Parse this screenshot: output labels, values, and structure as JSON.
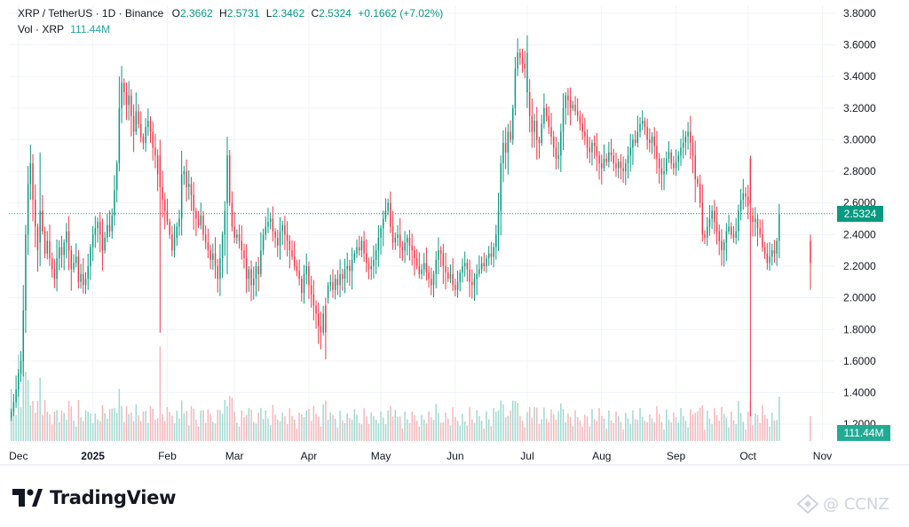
{
  "header": {
    "symbol": "XRP / TetherUS · 1D · Binance",
    "open_label": "O",
    "open": "2.3662",
    "high_label": "H",
    "high": "2.5731",
    "low_label": "L",
    "low": "2.3462",
    "close_label": "C",
    "close": "2.5324",
    "change": "+0.1662 (+7.02%)",
    "vol_label": "Vol · XRP",
    "vol_value": "111.44M"
  },
  "price_tag": "2.5324",
  "volume_tag": "111.44M",
  "brand": {
    "name": "TradingView"
  },
  "watermark": {
    "text": "@ CCNZ"
  },
  "colors": {
    "up": "#089981",
    "down": "#f23645",
    "up_vol": "#9fd9cf",
    "down_vol": "#f7b5ba",
    "grid": "#f0f3fa",
    "axis_text": "#131722"
  },
  "chart_data": {
    "type": "candlestick",
    "title": "XRP / TetherUS · 1D · Binance",
    "ylim": [
      1.1,
      3.85
    ],
    "y_ticks": [
      "3.8000",
      "3.6000",
      "3.4000",
      "3.2000",
      "3.0000",
      "2.8000",
      "2.6000",
      "2.4000",
      "2.2000",
      "2.0000",
      "1.8000",
      "1.6000",
      "1.4000",
      "1.2000"
    ],
    "x_ticks": [
      {
        "label": "Dec",
        "day": 0
      },
      {
        "label": "2025",
        "day": 31
      },
      {
        "label": "Feb",
        "day": 62
      },
      {
        "label": "Mar",
        "day": 90
      },
      {
        "label": "Apr",
        "day": 121
      },
      {
        "label": "May",
        "day": 151
      },
      {
        "label": "Jun",
        "day": 182
      },
      {
        "label": "Jul",
        "day": 212
      },
      {
        "label": "Aug",
        "day": 243
      },
      {
        "label": "Sep",
        "day": 274
      },
      {
        "label": "Oct",
        "day": 304
      },
      {
        "label": "Nov",
        "day": 335
      }
    ],
    "last_price": 2.5324,
    "day_start": -4,
    "day_end": 340,
    "first_day": -3,
    "closes": [
      1.28,
      1.34,
      1.42,
      1.52,
      1.6,
      1.92,
      2.4,
      2.72,
      2.85,
      2.62,
      2.45,
      2.3,
      2.55,
      2.42,
      2.28,
      2.36,
      2.25,
      2.18,
      2.12,
      2.25,
      2.32,
      2.27,
      2.35,
      2.42,
      2.3,
      2.18,
      2.22,
      2.26,
      2.1,
      2.15,
      2.08,
      2.12,
      2.2,
      2.32,
      2.4,
      2.44,
      2.48,
      2.4,
      2.3,
      2.38,
      2.46,
      2.42,
      2.52,
      2.68,
      2.85,
      3.2,
      3.36,
      3.3,
      3.22,
      3.28,
      3.15,
      3.05,
      3.18,
      3.1,
      3.02,
      2.98,
      3.08,
      3.12,
      3.05,
      2.95,
      2.9,
      2.78,
      2.7,
      2.62,
      2.55,
      2.48,
      2.4,
      2.3,
      2.38,
      2.45,
      2.5,
      2.78,
      2.8,
      2.7,
      2.72,
      2.65,
      2.55,
      2.5,
      2.46,
      2.52,
      2.4,
      2.35,
      2.3,
      2.24,
      2.28,
      2.2,
      2.12,
      2.25,
      2.4,
      2.55,
      2.9,
      2.6,
      2.45,
      2.38,
      2.4,
      2.36,
      2.3,
      2.25,
      2.12,
      2.18,
      2.08,
      2.12,
      2.2,
      2.15,
      2.3,
      2.4,
      2.45,
      2.48,
      2.5,
      2.42,
      2.38,
      2.33,
      2.42,
      2.46,
      2.4,
      2.36,
      2.3,
      2.26,
      2.2,
      2.17,
      2.12,
      2.03,
      2.15,
      2.2,
      2.08,
      2.02,
      1.95,
      1.9,
      1.82,
      1.78,
      1.9,
      2.0,
      2.08,
      2.1,
      2.05,
      2.12,
      2.08,
      2.15,
      2.12,
      2.18,
      2.2,
      2.17,
      2.24,
      2.28,
      2.32,
      2.3,
      2.36,
      2.28,
      2.22,
      2.18,
      2.2,
      2.24,
      2.3,
      2.38,
      2.44,
      2.5,
      2.55,
      2.6,
      2.45,
      2.35,
      2.38,
      2.4,
      2.32,
      2.3,
      2.35,
      2.38,
      2.33,
      2.3,
      2.25,
      2.2,
      2.15,
      2.18,
      2.22,
      2.16,
      2.12,
      2.08,
      2.15,
      2.24,
      2.3,
      2.28,
      2.2,
      2.16,
      2.12,
      2.15,
      2.08,
      2.05,
      2.1,
      2.16,
      2.2,
      2.22,
      2.18,
      2.1,
      2.08,
      2.12,
      2.15,
      2.18,
      2.22,
      2.2,
      2.25,
      2.28,
      2.26,
      2.32,
      2.4,
      2.55,
      2.85,
      2.98,
      2.92,
      3.05,
      3.0,
      3.2,
      3.45,
      3.55,
      3.52,
      3.48,
      3.45,
      3.3,
      3.15,
      3.05,
      3.12,
      3.0,
      2.98,
      3.1,
      3.2,
      3.15,
      3.08,
      3.02,
      2.95,
      2.88,
      2.9,
      3.05,
      3.2,
      3.28,
      3.25,
      3.2,
      3.22,
      3.18,
      3.15,
      3.1,
      3.05,
      3.02,
      2.95,
      2.92,
      2.98,
      2.96,
      2.9,
      2.85,
      2.82,
      2.88,
      2.86,
      2.92,
      2.9,
      2.85,
      2.82,
      2.86,
      2.82,
      2.8,
      2.85,
      2.9,
      2.95,
      3.0,
      2.98,
      3.05,
      3.1,
      3.12,
      3.08,
      3.0,
      2.98,
      3.02,
      2.96,
      2.88,
      2.82,
      2.78,
      2.8,
      2.88,
      2.92,
      2.85,
      2.82,
      2.86,
      2.9,
      2.95,
      2.98,
      3.02,
      3.05,
      2.98,
      2.9,
      2.75,
      2.72,
      2.6,
      2.4,
      2.38,
      2.45,
      2.5,
      2.55,
      2.48,
      2.42,
      2.36,
      2.3,
      2.35,
      2.42,
      2.45,
      2.4,
      2.38,
      2.42,
      2.55,
      2.62,
      2.66,
      2.64,
      2.58,
      2.52,
      2.48,
      2.5,
      2.44,
      2.4,
      2.32,
      2.28,
      2.22,
      2.26,
      2.3,
      2.28,
      2.36,
      2.53
    ],
    "overrides": {
      "12": [
        2.35,
        2.92,
        2.2,
        2.55
      ],
      "45": [
        2.85,
        3.4,
        2.8,
        3.2
      ],
      "62": [
        2.9,
        3.0,
        1.78,
        2.7
      ],
      "90": [
        2.6,
        3.02,
        2.15,
        2.9
      ],
      "131": [
        1.95,
        2.0,
        1.61,
        1.78
      ],
      "215": [
        3.3,
        3.66,
        3.2,
        3.55
      ],
      "308": [
        2.88,
        2.9,
        1.25,
        2.6
      ],
      "333": [
        2.36,
        2.4,
        2.05,
        2.22
      ]
    },
    "vol_peaks": {
      "0": 0.45,
      "3": 0.75,
      "5": 1.0,
      "6": 0.6,
      "12": 0.55,
      "45": 0.45,
      "62": 0.82,
      "90": 0.3,
      "131": 0.35,
      "215": 0.25,
      "308": 0.35
    }
  }
}
